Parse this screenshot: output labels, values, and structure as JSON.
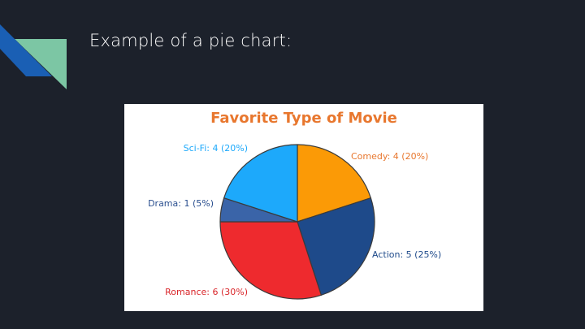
{
  "slide": {
    "title": "Example of a pie chart:"
  },
  "colors": {
    "background": "#1c212b",
    "accent_dark": "#1a5fb4",
    "accent_light": "#7cc6a4",
    "title_orange": "#e8772e"
  },
  "chart_data": {
    "type": "pie",
    "title": "Favorite Type of Movie",
    "slices": [
      {
        "label": "Comedy: 4 (20%)",
        "category": "Comedy",
        "value": 4,
        "percent": 20,
        "color": "#fb9a06",
        "label_color": "#e8772e"
      },
      {
        "label": "Action: 5 (25%)",
        "category": "Action",
        "value": 5,
        "percent": 25,
        "color": "#1e4a8a",
        "label_color": "#1e4a8a"
      },
      {
        "label": "Romance: 6 (30%)",
        "category": "Romance",
        "value": 6,
        "percent": 30,
        "color": "#ee2a2e",
        "label_color": "#d9262a"
      },
      {
        "label": "Drama: 1 (5%)",
        "category": "Drama",
        "value": 1,
        "percent": 5,
        "color": "#3a64a8",
        "label_color": "#2a4f8f"
      },
      {
        "label": "Sci-Fi: 4 (20%)",
        "category": "Sci-Fi",
        "value": 4,
        "percent": 20,
        "color": "#1da9fb",
        "label_color": "#1da9fb"
      }
    ]
  }
}
